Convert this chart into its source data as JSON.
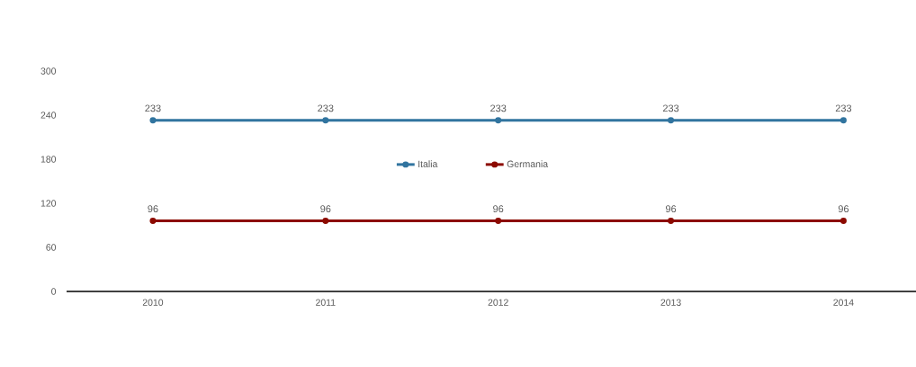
{
  "chart_data": {
    "type": "line",
    "categories": [
      "2010",
      "2011",
      "2012",
      "2013",
      "2014"
    ],
    "series": [
      {
        "name": "Italia",
        "color": "#31749f",
        "values": [
          233,
          233,
          233,
          233,
          233
        ]
      },
      {
        "name": "Germania",
        "color": "#8c0a00",
        "values": [
          96,
          96,
          96,
          96,
          96
        ]
      }
    ],
    "ylim": [
      0,
      300
    ],
    "yticks": [
      0,
      60,
      120,
      180,
      240,
      300
    ],
    "data_labels": true,
    "legend": "center",
    "marker": "circle"
  }
}
